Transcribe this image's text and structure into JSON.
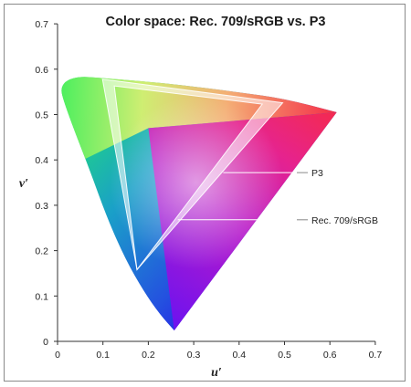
{
  "chart_data": {
    "type": "scatter",
    "title": "Color space: Rec. 709/sRGB vs. P3",
    "xlabel": "u′",
    "ylabel": "v′",
    "xlim": [
      0,
      0.7
    ],
    "ylim": [
      0,
      0.7
    ],
    "xticks": [
      "0",
      "0.1",
      "0.2",
      "0.3",
      "0.4",
      "0.5",
      "0.6",
      "0.7"
    ],
    "yticks": [
      "0",
      "0.1",
      "0.2",
      "0.3",
      "0.4",
      "0.5",
      "0.6",
      "0.7"
    ],
    "grid": false,
    "spectral_locus": [
      [
        0.257,
        0.024
      ],
      [
        0.225,
        0.06
      ],
      [
        0.19,
        0.11
      ],
      [
        0.15,
        0.18
      ],
      [
        0.11,
        0.27
      ],
      [
        0.07,
        0.38
      ],
      [
        0.035,
        0.47
      ],
      [
        0.01,
        0.54
      ],
      [
        0.008,
        0.56
      ],
      [
        0.02,
        0.576
      ],
      [
        0.05,
        0.584
      ],
      [
        0.09,
        0.581
      ],
      [
        0.14,
        0.577
      ],
      [
        0.25,
        0.568
      ],
      [
        0.4,
        0.549
      ],
      [
        0.5,
        0.535
      ],
      [
        0.615,
        0.505
      ]
    ],
    "series": [
      {
        "name": "P3",
        "points": [
          [
            0.496,
            0.526
          ],
          [
            0.099,
            0.578
          ],
          [
            0.175,
            0.158
          ]
        ],
        "label_anchor": [
          0.365,
          0.372
        ]
      },
      {
        "name": "Rec. 709/sRGB",
        "points": [
          [
            0.451,
            0.523
          ],
          [
            0.125,
            0.563
          ],
          [
            0.175,
            0.158
          ]
        ],
        "label_anchor": [
          0.265,
          0.268
        ]
      }
    ]
  }
}
